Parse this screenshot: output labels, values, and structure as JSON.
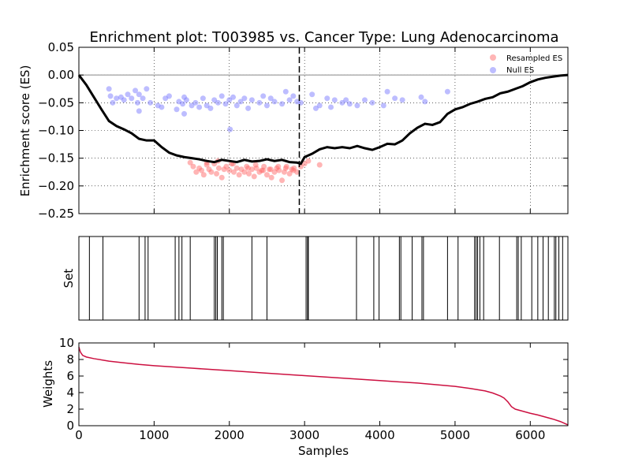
{
  "chart_data": [
    {
      "type": "line",
      "title": "Enrichment plot: T003985 vs. Cancer Type: Lung Adenocarcinoma",
      "xlabel": "",
      "ylabel": "Enrichment score (ES)",
      "xlim": [
        0,
        6500
      ],
      "ylim": [
        -0.25,
        0.05
      ],
      "grid": true,
      "x_ticks": [
        1000,
        2000,
        3000,
        4000,
        5000,
        6000
      ],
      "y_ticks": [
        "0.05",
        "0.00",
        "−0.05",
        "−0.10",
        "−0.15",
        "−0.20",
        "−0.25"
      ],
      "y_tick_values": [
        0.05,
        0.0,
        -0.05,
        -0.1,
        -0.15,
        -0.2,
        -0.25
      ],
      "legend_position": "top-right",
      "legend": [
        {
          "label": "Resampled ES",
          "color": "#ff6b6b"
        },
        {
          "label": "Null ES",
          "color": "#7b7bff"
        }
      ],
      "zero_line": 0,
      "leading_edge_x": 2930,
      "es_curve": {
        "color": "#000000",
        "x": [
          0,
          100,
          200,
          300,
          400,
          500,
          600,
          700,
          800,
          900,
          1000,
          1100,
          1200,
          1300,
          1400,
          1500,
          1600,
          1700,
          1800,
          1900,
          2000,
          2100,
          2200,
          2300,
          2400,
          2500,
          2600,
          2700,
          2800,
          2900,
          2950,
          3000,
          3100,
          3200,
          3300,
          3400,
          3500,
          3600,
          3700,
          3800,
          3900,
          4000,
          4100,
          4200,
          4300,
          4400,
          4500,
          4600,
          4700,
          4800,
          4900,
          5000,
          5100,
          5200,
          5300,
          5400,
          5500,
          5600,
          5700,
          5800,
          5900,
          6000,
          6100,
          6200,
          6300,
          6400,
          6500
        ],
        "y": [
          0.0,
          -0.018,
          -0.04,
          -0.062,
          -0.083,
          -0.092,
          -0.098,
          -0.105,
          -0.115,
          -0.118,
          -0.118,
          -0.13,
          -0.14,
          -0.145,
          -0.148,
          -0.15,
          -0.152,
          -0.155,
          -0.157,
          -0.153,
          -0.155,
          -0.157,
          -0.153,
          -0.156,
          -0.155,
          -0.152,
          -0.155,
          -0.153,
          -0.157,
          -0.158,
          -0.16,
          -0.148,
          -0.142,
          -0.134,
          -0.13,
          -0.132,
          -0.13,
          -0.132,
          -0.128,
          -0.132,
          -0.135,
          -0.13,
          -0.124,
          -0.125,
          -0.118,
          -0.105,
          -0.095,
          -0.088,
          -0.09,
          -0.085,
          -0.07,
          -0.062,
          -0.058,
          -0.052,
          -0.048,
          -0.043,
          -0.04,
          -0.033,
          -0.03,
          -0.025,
          -0.02,
          -0.013,
          -0.008,
          -0.005,
          -0.003,
          -0.001,
          0.0
        ]
      },
      "resampled_es": {
        "color": "#ff6b6b",
        "x": [
          1480,
          1520,
          1560,
          1600,
          1630,
          1660,
          1700,
          1730,
          1760,
          1800,
          1830,
          1860,
          1900,
          1930,
          1960,
          2000,
          2030,
          2060,
          2100,
          2130,
          2160,
          2200,
          2230,
          2260,
          2300,
          2330,
          2360,
          2400,
          2430,
          2460,
          2500,
          2530,
          2560,
          2600,
          2630,
          2660,
          2700,
          2730,
          2760,
          2800,
          2830,
          2860,
          2900,
          2950,
          3000,
          3050,
          3200,
          1700,
          1850,
          2050,
          2250,
          2350,
          2450,
          2550,
          2650,
          2750,
          2850
        ],
        "y": [
          -0.158,
          -0.165,
          -0.175,
          -0.168,
          -0.172,
          -0.18,
          -0.162,
          -0.17,
          -0.175,
          -0.16,
          -0.178,
          -0.168,
          -0.185,
          -0.17,
          -0.165,
          -0.172,
          -0.16,
          -0.175,
          -0.168,
          -0.18,
          -0.17,
          -0.175,
          -0.165,
          -0.178,
          -0.17,
          -0.183,
          -0.168,
          -0.175,
          -0.172,
          -0.165,
          -0.18,
          -0.17,
          -0.185,
          -0.175,
          -0.168,
          -0.172,
          -0.19,
          -0.175,
          -0.165,
          -0.178,
          -0.17,
          -0.168,
          -0.175,
          -0.165,
          -0.16,
          -0.155,
          -0.162,
          -0.158,
          -0.155,
          -0.16,
          -0.168,
          -0.162,
          -0.172,
          -0.17,
          -0.165,
          -0.168,
          -0.172
        ]
      },
      "null_es": {
        "color": "#7b7bff",
        "x": [
          400,
          420,
          450,
          500,
          560,
          600,
          650,
          700,
          750,
          780,
          800,
          850,
          900,
          950,
          1050,
          1100,
          1150,
          1200,
          1300,
          1330,
          1380,
          1400,
          1430,
          1500,
          1550,
          1600,
          1650,
          1700,
          1750,
          1800,
          1850,
          1900,
          1950,
          2000,
          2050,
          2100,
          2150,
          2200,
          2250,
          2300,
          2400,
          2450,
          2500,
          2550,
          2600,
          2700,
          2750,
          2800,
          2850,
          2900,
          2950,
          3100,
          3150,
          3200,
          3300,
          3350,
          3400,
          3500,
          3550,
          3600,
          3700,
          3800,
          3900,
          4050,
          4100,
          4200,
          4300,
          4550,
          4600,
          4900,
          2010,
          1400,
          800
        ],
        "y": [
          -0.025,
          -0.038,
          -0.05,
          -0.042,
          -0.04,
          -0.045,
          -0.035,
          -0.042,
          -0.028,
          -0.05,
          -0.035,
          -0.042,
          -0.025,
          -0.05,
          -0.055,
          -0.058,
          -0.042,
          -0.038,
          -0.062,
          -0.048,
          -0.052,
          -0.07,
          -0.045,
          -0.055,
          -0.05,
          -0.058,
          -0.042,
          -0.055,
          -0.06,
          -0.045,
          -0.05,
          -0.038,
          -0.052,
          -0.045,
          -0.04,
          -0.055,
          -0.048,
          -0.042,
          -0.06,
          -0.045,
          -0.05,
          -0.038,
          -0.055,
          -0.042,
          -0.048,
          -0.052,
          -0.03,
          -0.045,
          -0.038,
          -0.048,
          -0.05,
          -0.035,
          -0.06,
          -0.055,
          -0.042,
          -0.058,
          -0.045,
          -0.05,
          -0.045,
          -0.052,
          -0.055,
          -0.045,
          -0.05,
          -0.055,
          -0.03,
          -0.042,
          -0.045,
          -0.04,
          -0.048,
          -0.03,
          -0.098,
          -0.04,
          -0.065
        ]
      }
    },
    {
      "type": "bar",
      "title": "",
      "xlabel": "",
      "ylabel": "Set",
      "xlim": [
        0,
        6500
      ],
      "set_positions": [
        140,
        320,
        800,
        880,
        920,
        1280,
        1330,
        1370,
        1480,
        1800,
        1820,
        1840,
        1900,
        1920,
        2300,
        2500,
        3020,
        3040,
        3050,
        3690,
        3920,
        3990,
        4260,
        4280,
        4430,
        4560,
        4580,
        4900,
        5040,
        5260,
        5280,
        5300,
        5330,
        5380,
        5590,
        5820,
        5840,
        5880,
        6020,
        6100,
        6170,
        6240,
        6320,
        6340,
        6380,
        6430
      ]
    },
    {
      "type": "line",
      "title": "",
      "xlabel": "Samples",
      "ylabel": "Weights",
      "xlim": [
        0,
        6500
      ],
      "ylim": [
        0,
        10
      ],
      "grid": false,
      "x_ticks": [
        0,
        1000,
        2000,
        3000,
        4000,
        5000,
        6000
      ],
      "y_ticks": [
        0,
        2,
        4,
        6,
        8,
        10
      ],
      "series": [
        {
          "color": "#cc1040",
          "x": [
            0,
            20,
            50,
            100,
            200,
            400,
            600,
            800,
            1000,
            1500,
            2000,
            2500,
            3000,
            3500,
            4000,
            4500,
            5000,
            5200,
            5400,
            5500,
            5600,
            5650,
            5700,
            5750,
            5800,
            5900,
            6000,
            6100,
            6200,
            6300,
            6400,
            6450,
            6500
          ],
          "y": [
            9.5,
            8.9,
            8.5,
            8.3,
            8.1,
            7.8,
            7.6,
            7.4,
            7.25,
            6.95,
            6.65,
            6.35,
            6.05,
            5.75,
            5.45,
            5.15,
            4.75,
            4.5,
            4.2,
            3.95,
            3.6,
            3.35,
            2.9,
            2.3,
            2.0,
            1.75,
            1.5,
            1.3,
            1.05,
            0.8,
            0.5,
            0.3,
            0.1
          ]
        }
      ]
    }
  ]
}
